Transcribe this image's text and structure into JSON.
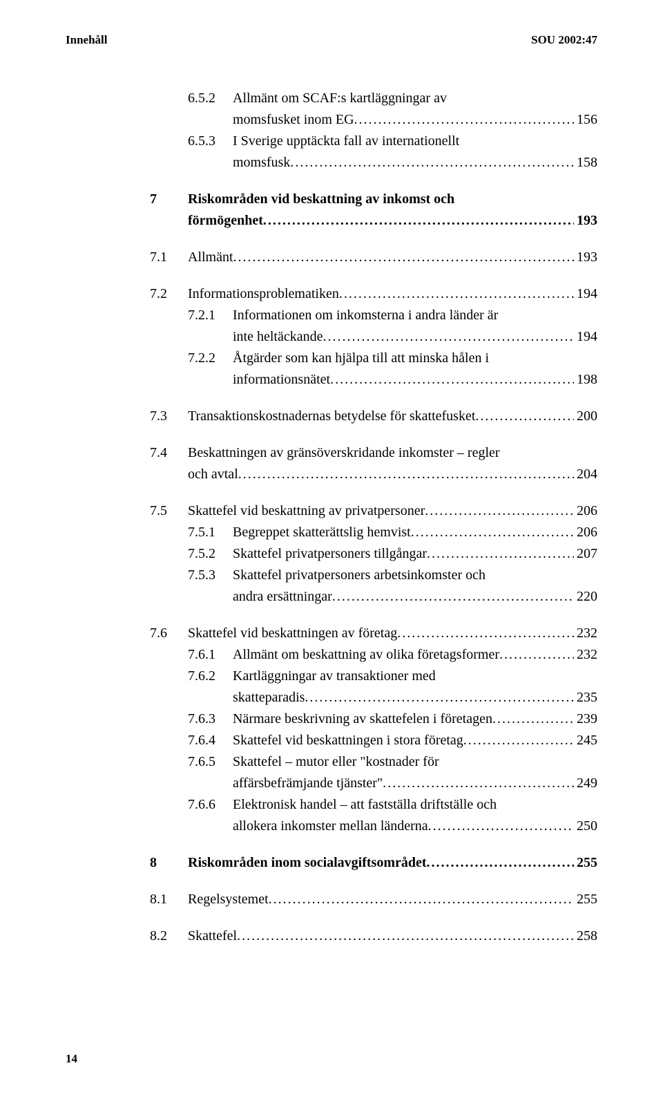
{
  "header": {
    "left": "Innehåll",
    "right": "SOU 2002:47"
  },
  "pageNumber": "14",
  "entries": [
    {
      "lvl": 3,
      "num": "6.5.2",
      "lines": [
        "Allmänt om SCAF:s kartläggningar av",
        "momsfusket inom EG"
      ],
      "page": "156",
      "bold": false
    },
    {
      "lvl": 3,
      "num": "6.5.3",
      "lines": [
        "I Sverige upptäckta fall av internationellt",
        "momsfusk"
      ],
      "page": "158",
      "bold": false
    },
    {
      "gap": "md"
    },
    {
      "lvl": 1,
      "num": "7",
      "lines": [
        "Riskområden vid beskattning av inkomst och",
        "förmögenhet"
      ],
      "page": "193",
      "bold": true
    },
    {
      "gap": "md"
    },
    {
      "lvl": 2,
      "num": "7.1",
      "lines": [
        "Allmänt"
      ],
      "page": "193",
      "bold": false
    },
    {
      "gap": "md"
    },
    {
      "lvl": 2,
      "num": "7.2",
      "lines": [
        "Informationsproblematiken"
      ],
      "page": "194",
      "bold": false
    },
    {
      "lvl": 3,
      "num": "7.2.1",
      "lines": [
        "Informationen om inkomsterna i andra länder är",
        "inte heltäckande"
      ],
      "page": "194",
      "bold": false
    },
    {
      "lvl": 3,
      "num": "7.2.2",
      "lines": [
        "Åtgärder som kan hjälpa till att minska hålen i",
        "informationsnätet"
      ],
      "page": "198",
      "bold": false
    },
    {
      "gap": "md"
    },
    {
      "lvl": 2,
      "num": "7.3",
      "lines": [
        "Transaktionskostnadernas betydelse för skattefusket"
      ],
      "page": "200",
      "bold": false
    },
    {
      "gap": "md"
    },
    {
      "lvl": 2,
      "num": "7.4",
      "lines": [
        "Beskattningen av gränsöverskridande inkomster – regler",
        "och avtal"
      ],
      "page": "204",
      "bold": false
    },
    {
      "gap": "md"
    },
    {
      "lvl": 2,
      "num": "7.5",
      "lines": [
        "Skattefel vid beskattning av privatpersoner"
      ],
      "page": "206",
      "bold": false
    },
    {
      "lvl": 3,
      "num": "7.5.1",
      "lines": [
        "Begreppet skatterättslig hemvist"
      ],
      "page": "206",
      "bold": false
    },
    {
      "lvl": 3,
      "num": "7.5.2",
      "lines": [
        "Skattefel privatpersoners tillgångar"
      ],
      "page": "207",
      "bold": false
    },
    {
      "lvl": 3,
      "num": "7.5.3",
      "lines": [
        "Skattefel privatpersoners arbetsinkomster och",
        "andra ersättningar"
      ],
      "page": "220",
      "bold": false
    },
    {
      "gap": "md"
    },
    {
      "lvl": 2,
      "num": "7.6",
      "lines": [
        "Skattefel vid beskattningen av företag"
      ],
      "page": "232",
      "bold": false
    },
    {
      "lvl": 3,
      "num": "7.6.1",
      "lines": [
        "Allmänt om beskattning av olika företagsformer"
      ],
      "page": "232",
      "bold": false
    },
    {
      "lvl": 3,
      "num": "7.6.2",
      "lines": [
        "Kartläggningar av transaktioner med",
        "skatteparadis"
      ],
      "page": "235",
      "bold": false
    },
    {
      "lvl": 3,
      "num": "7.6.3",
      "lines": [
        "Närmare beskrivning av skattefelen i företagen"
      ],
      "page": "239",
      "bold": false
    },
    {
      "lvl": 3,
      "num": "7.6.4",
      "lines": [
        "Skattefel vid beskattningen i stora företag"
      ],
      "page": "245",
      "bold": false
    },
    {
      "lvl": 3,
      "num": "7.6.5",
      "lines": [
        "Skattefel – mutor eller \"kostnader för",
        "affärsbefrämjande tjänster\""
      ],
      "page": "249",
      "bold": false
    },
    {
      "lvl": 3,
      "num": "7.6.6",
      "lines": [
        "Elektronisk handel – att fastställa driftställe och",
        "allokera inkomster mellan länderna"
      ],
      "page": "250",
      "bold": false
    },
    {
      "gap": "md"
    },
    {
      "lvl": 1,
      "num": "8",
      "lines": [
        "Riskområden inom socialavgiftsområdet"
      ],
      "page": "255",
      "bold": true
    },
    {
      "gap": "md"
    },
    {
      "lvl": 2,
      "num": "8.1",
      "lines": [
        "Regelsystemet"
      ],
      "page": "255",
      "bold": false
    },
    {
      "gap": "md"
    },
    {
      "lvl": 2,
      "num": "8.2",
      "lines": [
        "Skattefel"
      ],
      "page": "258",
      "bold": false
    }
  ]
}
